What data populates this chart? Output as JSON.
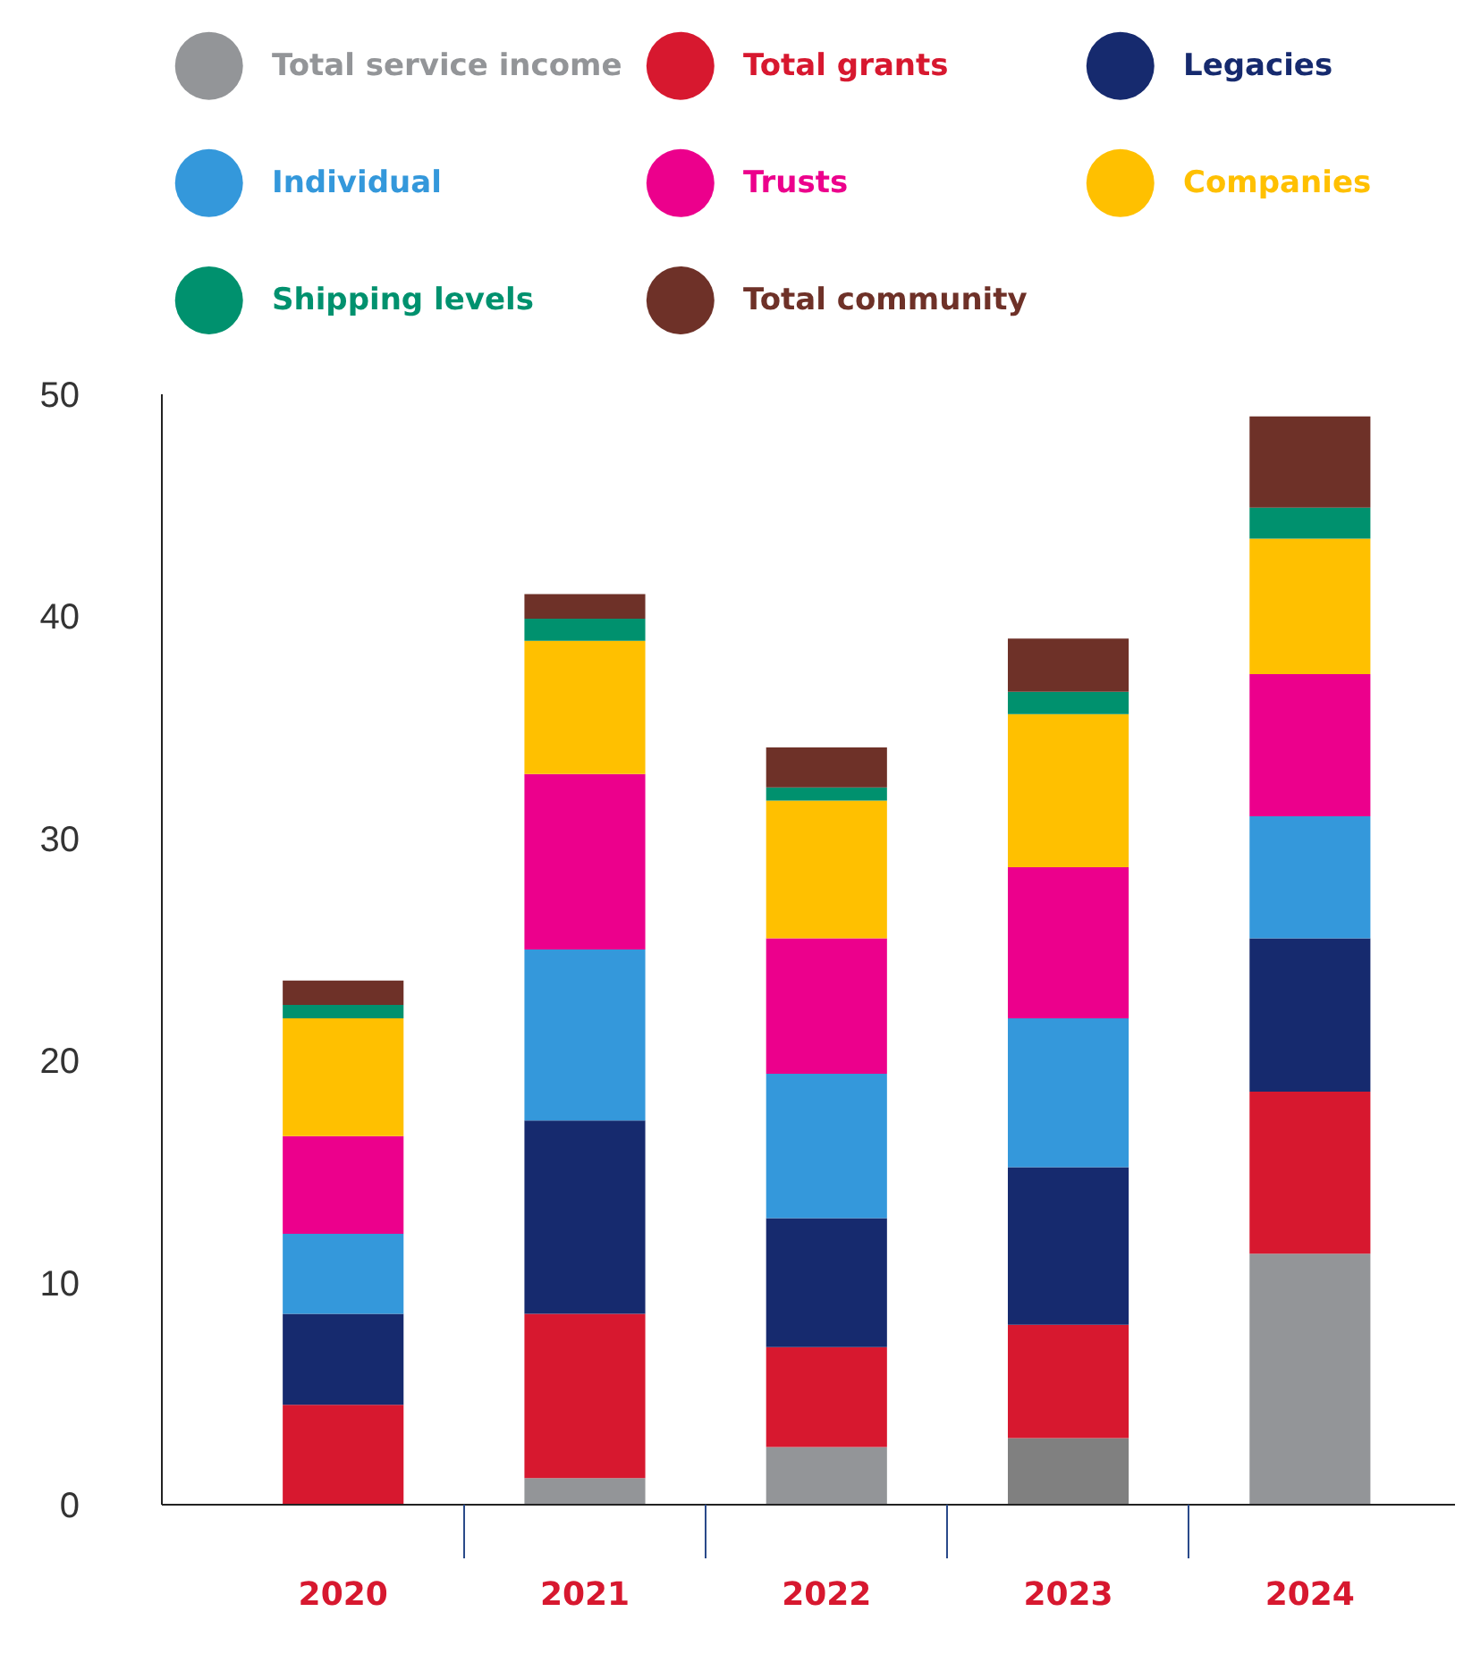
{
  "chart_data": {
    "type": "bar",
    "stacked": true,
    "categories": [
      "2020",
      "2021",
      "2022",
      "2023",
      "2024"
    ],
    "series": [
      {
        "name": "Total service income",
        "color": "#939598",
        "colors": [
          "#939598",
          "#939598",
          "#939598",
          "#808080",
          "#939598"
        ],
        "values": [
          0,
          1.2,
          2.6,
          3.0,
          11.3
        ]
      },
      {
        "name": "Total grants",
        "color": "#d7182f",
        "values": [
          4.5,
          7.4,
          4.5,
          5.1,
          7.3
        ]
      },
      {
        "name": "Legacies",
        "color": "#162a6e",
        "values": [
          4.1,
          8.7,
          5.8,
          7.1,
          6.9
        ]
      },
      {
        "name": "Individual",
        "color": "#3498db",
        "values": [
          3.6,
          7.7,
          6.5,
          6.7,
          5.5
        ]
      },
      {
        "name": "Trusts",
        "color": "#ec008c",
        "values": [
          4.4,
          7.9,
          6.1,
          6.8,
          6.4
        ]
      },
      {
        "name": "Companies",
        "color": "#ffc000",
        "values": [
          5.3,
          6.0,
          6.2,
          6.9,
          6.1
        ]
      },
      {
        "name": "Shipping levels",
        "color": "#00916e",
        "values": [
          0.6,
          1.0,
          0.6,
          1.0,
          1.4
        ]
      },
      {
        "name": "Total community",
        "color": "#6e3128",
        "values": [
          1.1,
          1.1,
          1.8,
          2.4,
          4.1
        ]
      }
    ],
    "ylim": [
      0,
      50
    ],
    "yticks": [
      0,
      10,
      20,
      30,
      40,
      50
    ],
    "grid": false,
    "legend": "top"
  }
}
